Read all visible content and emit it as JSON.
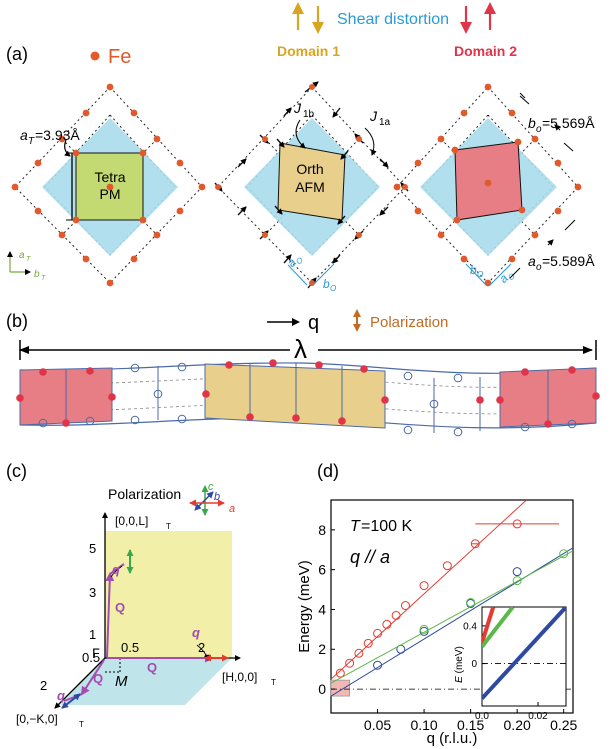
{
  "panel_a": {
    "label": "(a)",
    "fe_label": "Fe",
    "shear_label": "Shear distortion",
    "domain1": "Domain 1",
    "domain2": "Domain 2",
    "tetra_line1": "Tetra",
    "tetra_line2": "PM",
    "orth_line1": "Orth",
    "orth_line2": "AFM",
    "a_T_sym": "a",
    "a_T_sub": "T",
    "a_T_val": "=3.93Å",
    "axis_aT_sym": "a",
    "axis_aT_sub": "T",
    "axis_bT_sym": "b",
    "axis_bT_sub": "T",
    "J1b_sym": "J",
    "J1b_sub": "1b",
    "J1a_sym": "J",
    "J1a_sub": "1a",
    "ao_sym": "a",
    "ao_sub": "O",
    "bo_sym": "b",
    "bo_sub": "O",
    "ao2_sym": "a",
    "ao2_sub": "O",
    "bo2_sym": "b",
    "bo2_sub": "O",
    "bo_val_sym": "b",
    "bo_val_sub": "o",
    "bo_val": "=5.569Å",
    "ao_val_sym": "a",
    "ao_val_sub": "o",
    "ao_val": "=5.589Å"
  },
  "panel_b": {
    "label": "(b)",
    "q_label": "q",
    "polarization": "Polarization",
    "lambda": "λ"
  },
  "panel_c": {
    "label": "(c)",
    "polarization": "Polarization",
    "pol_c": "c",
    "pol_b": "b",
    "pol_a": "a",
    "axis_L": "[0,0,L]",
    "axis_L_sub": "T",
    "axis_H": "[H,0,0]",
    "axis_H_sub": "T",
    "axis_K": "[0,−K,0]",
    "axis_K_sub": "T",
    "tick_5": "5",
    "tick_3": "3",
    "tick_1": "1",
    "tick_05a": "0.5",
    "tick_05b": "0.5",
    "tick_2h": "2",
    "tick_2k": "2",
    "gamma": "Γ",
    "M": "M",
    "q1": "q",
    "q2": "q",
    "q3": "q",
    "Q1": "Q",
    "Q2": "Q",
    "Q3": "Q"
  },
  "panel_d": {
    "label": "(d)",
    "annotation_T": "T",
    "annotation_T_val": "=100 K",
    "annotation_q": "q // a",
    "inset_xlabel": "",
    "inset_ylabel_sym": "E",
    "inset_ylabel_unit": "(meV)"
  },
  "colors": {
    "red_series": "#e53a2f",
    "blue_series": "#2e4aa0",
    "green_series": "#5ab848",
    "domain1": "#d9a521",
    "domain2": "#e03548",
    "fe_dot": "#e05a2c",
    "cyan": "#a8dcec",
    "green_sq": "#c3da73",
    "tan_sq": "#e8cf8c",
    "pink_sq": "#e77e85",
    "yellow_plane": "#f2f0a8",
    "blue_plane": "#bfe4ea",
    "purple": "#a64bb0",
    "shear_text": "#2b9ad4",
    "polar_orange": "#c36b25"
  },
  "chart_data": [
    {
      "type": "scatter",
      "title": "",
      "xlabel": "q (r.l.u.)",
      "ylabel": "Energy (meV)",
      "xlim": [
        0,
        0.26
      ],
      "ylim": [
        -1.2,
        9.5
      ],
      "xticks": [
        "0.05",
        "0.10",
        "0.15",
        "0.20",
        "0.25"
      ],
      "xtick_values": [
        0.05,
        0.1,
        0.15,
        0.2,
        0.25
      ],
      "yticks": [
        "0",
        "2",
        "4",
        "6",
        "8"
      ],
      "ytick_values": [
        0,
        2,
        4,
        6,
        8
      ],
      "series": [
        {
          "color": "red",
          "x": [
            0.01,
            0.02,
            0.03,
            0.04,
            0.05,
            0.06,
            0.07,
            0.08,
            0.1,
            0.125,
            0.155,
            0.2
          ],
          "y": [
            0.8,
            1.3,
            1.8,
            2.3,
            2.8,
            3.25,
            3.7,
            4.2,
            5.2,
            6.2,
            7.3,
            8.3
          ],
          "xerr": [
            0,
            0,
            0,
            0,
            0,
            0,
            0,
            0,
            0,
            0,
            0.004,
            0.045
          ],
          "fit": [
            [
              0.0,
              0.5
            ],
            [
              0.21,
              9.5
            ]
          ]
        },
        {
          "color": "blue",
          "x": [
            0.05,
            0.075,
            0.1,
            0.15,
            0.2
          ],
          "y": [
            1.2,
            2.0,
            2.9,
            4.3,
            5.9
          ],
          "fit": [
            [
              0.0,
              -0.35
            ],
            [
              0.26,
              7.1
            ]
          ]
        },
        {
          "color": "green",
          "x": [
            0.1,
            0.15,
            0.2,
            0.25
          ],
          "y": [
            3.0,
            4.35,
            5.45,
            6.8
          ],
          "fit": [
            [
              0.0,
              0.3
            ],
            [
              0.26,
              6.95
            ]
          ]
        }
      ]
    },
    {
      "type": "line",
      "title": "",
      "xlabel": "",
      "ylabel": "E (meV)",
      "xlim": [
        0,
        0.03
      ],
      "ylim": [
        -0.45,
        0.6
      ],
      "xticks": [
        "0.0",
        "0.02"
      ],
      "xtick_values": [
        0.0,
        0.02
      ],
      "yticks": [
        "0.4",
        "0"
      ],
      "ytick_values": [
        0.4,
        0
      ],
      "series": [
        {
          "color": "red",
          "x": [
            0.0,
            0.004
          ],
          "y": [
            0.22,
            0.6
          ]
        },
        {
          "color": "green",
          "x": [
            0.0,
            0.011
          ],
          "y": [
            0.18,
            0.6
          ]
        },
        {
          "color": "blue",
          "x": [
            0.0,
            0.03
          ],
          "y": [
            -0.37,
            0.6
          ]
        }
      ]
    }
  ]
}
